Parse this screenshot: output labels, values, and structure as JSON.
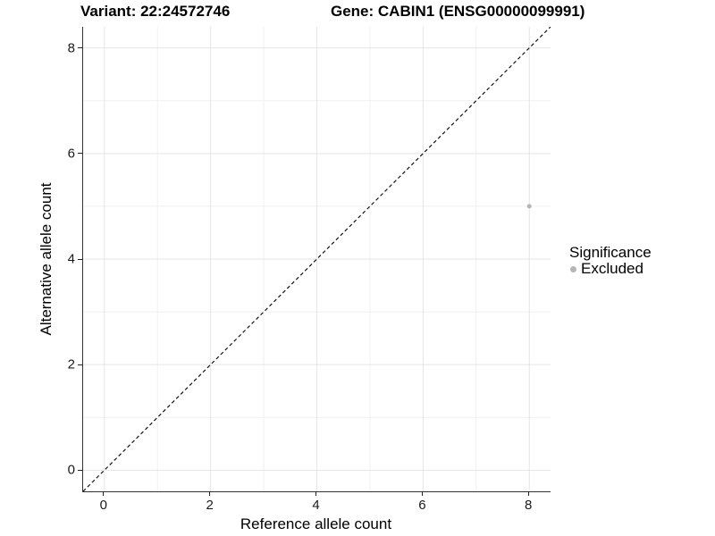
{
  "chart_data": {
    "type": "scatter",
    "title_left": "Variant: 22:24572746",
    "title_right": "Gene: CABIN1 (ENSG00000099991)",
    "xlabel": "Reference allele count",
    "ylabel": "Alternative allele count",
    "xlim": [
      -0.4,
      8.4
    ],
    "ylim": [
      -0.4,
      8.4
    ],
    "xticks": [
      0,
      2,
      4,
      6,
      8
    ],
    "yticks": [
      0,
      2,
      4,
      6,
      8
    ],
    "xminor": [
      1,
      3,
      5,
      7
    ],
    "yminor": [
      1,
      3,
      5,
      7
    ],
    "grid": true,
    "points": [
      {
        "x": 8,
        "y": 5,
        "series": "Excluded"
      }
    ],
    "marker_px": 5,
    "abline": {
      "slope": 1,
      "intercept": 0,
      "style": "dashed"
    },
    "legend": {
      "position": "right",
      "title": "Significance",
      "entries": [
        {
          "label": "Excluded",
          "color": "#b5b5b5"
        }
      ]
    }
  },
  "colors": {
    "background": "#ffffff",
    "point": "#b5b5b5",
    "grid_major": "#e5e5e5",
    "grid_minor": "#f1f1f1",
    "axis_line": "#333333",
    "tick_mark": "#222222",
    "tick_label": "#1a1a1a",
    "abline": "#111111",
    "text": "#000000"
  }
}
